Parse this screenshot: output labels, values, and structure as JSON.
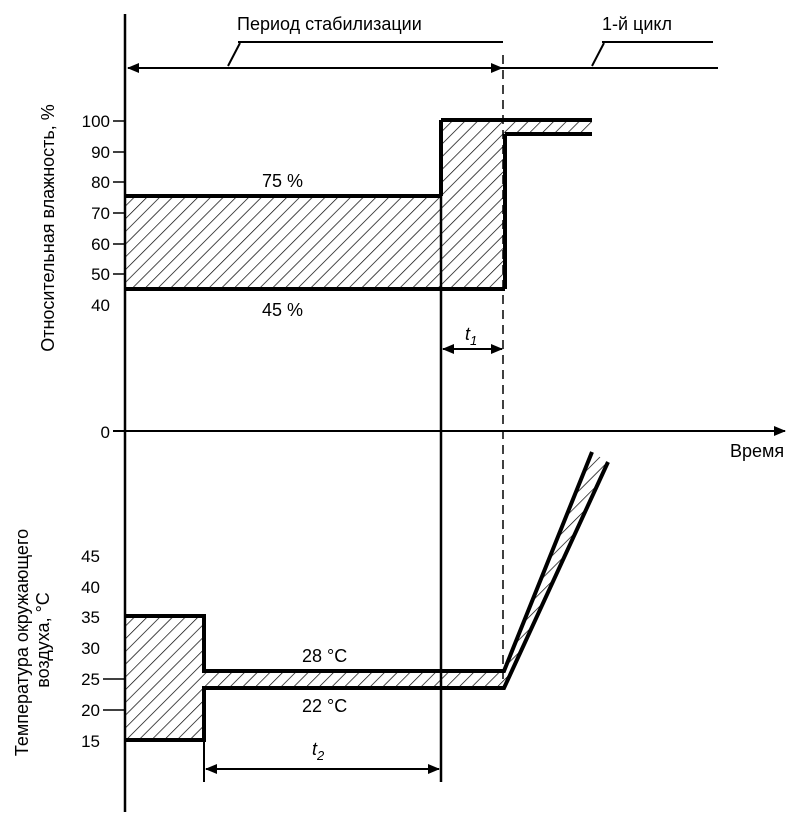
{
  "header": {
    "period_label": "Период стабилизации",
    "cycle_label": "1-й цикл"
  },
  "humidity_axis": {
    "title": "Относительная влажность, %",
    "ticks": [
      "100",
      "90",
      "80",
      "70",
      "60",
      "50",
      "40"
    ],
    "zero": "0"
  },
  "humidity_band": {
    "upper_label": "75 %",
    "lower_label": "45 %"
  },
  "time_axis": {
    "label": "Время"
  },
  "t1_label": {
    "main": "t",
    "sub": "1"
  },
  "t2_label": {
    "main": "t",
    "sub": "2"
  },
  "temperature_axis": {
    "title_line1": "Температура окружающего",
    "title_line2": "воздуха, °С",
    "ticks": [
      "45",
      "40",
      "35",
      "30",
      "25",
      "20",
      "15"
    ]
  },
  "temperature_band": {
    "upper_label": "28 °C",
    "lower_label": "22 °C"
  },
  "colors": {
    "ink": "#000000",
    "background": "#ffffff"
  }
}
